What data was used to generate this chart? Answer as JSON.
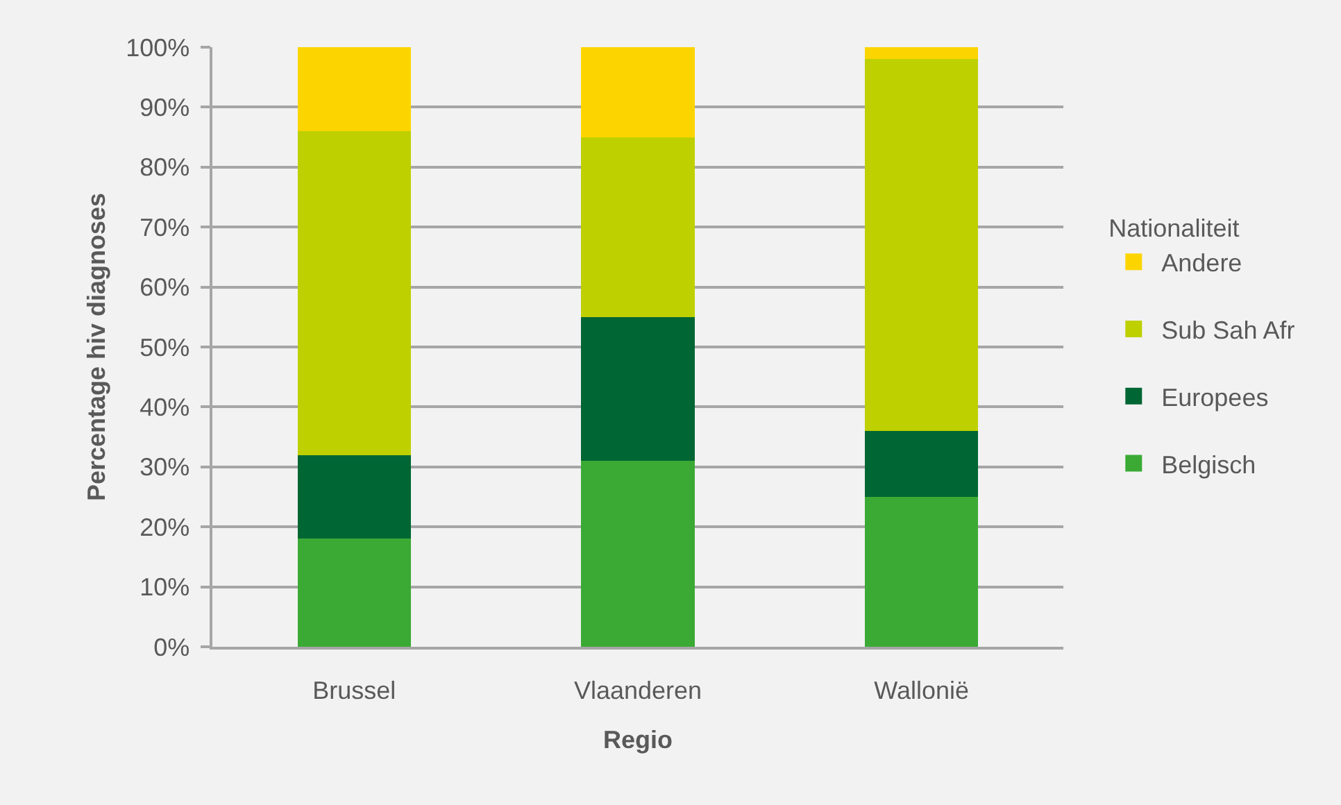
{
  "chart_data": {
    "type": "bar",
    "stacked": true,
    "xlabel": "Regio",
    "ylabel": "Percentage hiv diagnoses",
    "legend_title": "Nationaliteit",
    "categories": [
      "Brussel",
      "Vlaanderen",
      "Wallonië"
    ],
    "series": [
      {
        "name": "Belgisch",
        "color": "#3aaa35",
        "values": [
          18,
          31,
          25
        ]
      },
      {
        "name": "Europees",
        "color": "#006633",
        "values": [
          14,
          24,
          11
        ]
      },
      {
        "name": "Sub Sah Afr",
        "color": "#bed000",
        "values": [
          54,
          30,
          62
        ]
      },
      {
        "name": "Andere",
        "color": "#fcd500",
        "values": [
          14,
          15,
          2
        ]
      }
    ],
    "ylim": [
      0,
      100
    ],
    "yticks": [
      {
        "value": 0,
        "label": "0%"
      },
      {
        "value": 10,
        "label": "10%"
      },
      {
        "value": 20,
        "label": "20%"
      },
      {
        "value": 30,
        "label": "30%"
      },
      {
        "value": 40,
        "label": "40%"
      },
      {
        "value": 50,
        "label": "50%"
      },
      {
        "value": 60,
        "label": "60%"
      },
      {
        "value": 70,
        "label": "70%"
      },
      {
        "value": 80,
        "label": "80%"
      },
      {
        "value": 90,
        "label": "90%"
      },
      {
        "value": 100,
        "label": "100%"
      }
    ],
    "grid": "y",
    "legend": "right"
  }
}
